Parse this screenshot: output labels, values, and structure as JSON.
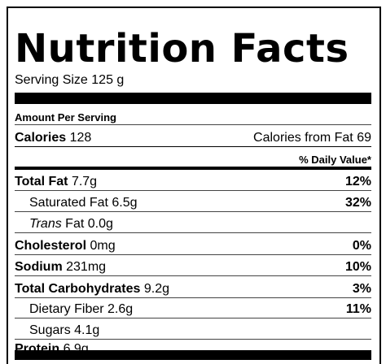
{
  "label": {
    "title": "Nutrition Facts",
    "serving_size_label": "Serving Size",
    "serving_size_value": "125 g",
    "amount_per_serving": "Amount Per Serving",
    "calories_label": "Calories",
    "calories_value": "128",
    "calories_from_fat_label": "Calories from Fat",
    "calories_from_fat_value": "69",
    "daily_value_header": "% Daily Value*",
    "nutrients": [
      {
        "name": "Total Fat",
        "amount": "7.7g",
        "dv": "12%"
      },
      {
        "name": "Saturated Fat",
        "amount": "6.5g",
        "dv": "32%"
      },
      {
        "name_italic": "Trans",
        "name": "Fat",
        "amount": "0.0g",
        "dv": ""
      },
      {
        "name": "Cholesterol",
        "amount": "0mg",
        "dv": "0%"
      },
      {
        "name": "Sodium",
        "amount": "231mg",
        "dv": "10%"
      },
      {
        "name": "Total Carbohydrates",
        "amount": "9.2g",
        "dv": "3%"
      },
      {
        "name": "Dietary Fiber",
        "amount": "2.6g",
        "dv": "11%"
      },
      {
        "name": "Sugars",
        "amount": "4.1g",
        "dv": ""
      },
      {
        "name": "Protein",
        "amount": "6.9g",
        "dv": ""
      }
    ]
  }
}
